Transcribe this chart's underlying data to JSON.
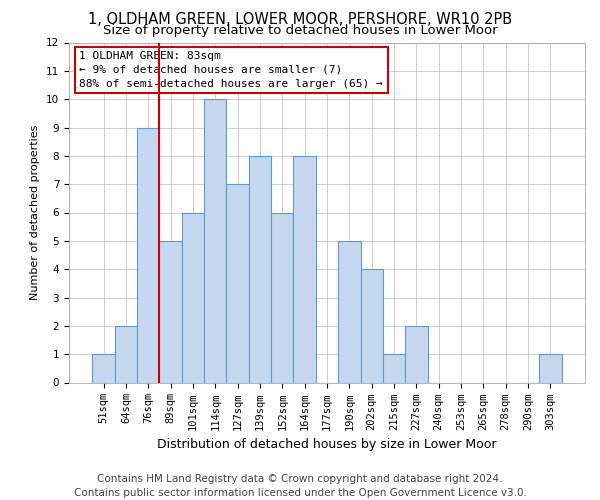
{
  "title1": "1, OLDHAM GREEN, LOWER MOOR, PERSHORE, WR10 2PB",
  "title2": "Size of property relative to detached houses in Lower Moor",
  "xlabel": "Distribution of detached houses by size in Lower Moor",
  "ylabel": "Number of detached properties",
  "categories": [
    "51sqm",
    "64sqm",
    "76sqm",
    "89sqm",
    "101sqm",
    "114sqm",
    "127sqm",
    "139sqm",
    "152sqm",
    "164sqm",
    "177sqm",
    "190sqm",
    "202sqm",
    "215sqm",
    "227sqm",
    "240sqm",
    "253sqm",
    "265sqm",
    "278sqm",
    "290sqm",
    "303sqm"
  ],
  "values": [
    1,
    2,
    9,
    5,
    6,
    10,
    7,
    8,
    6,
    8,
    0,
    5,
    4,
    1,
    2,
    0,
    0,
    0,
    0,
    0,
    1
  ],
  "bar_color": "#c5d8f0",
  "bar_edge_color": "#5b9bd5",
  "vline_color": "#cc0000",
  "vline_x_index": 2,
  "annotation_text": "1 OLDHAM GREEN: 83sqm\n← 9% of detached houses are smaller (7)\n88% of semi-detached houses are larger (65) →",
  "annotation_box_color": "#ffffff",
  "annotation_box_edge": "#cc0000",
  "ylim": [
    0,
    12
  ],
  "yticks": [
    0,
    1,
    2,
    3,
    4,
    5,
    6,
    7,
    8,
    9,
    10,
    11,
    12
  ],
  "footer1": "Contains HM Land Registry data © Crown copyright and database right 2024.",
  "footer2": "Contains public sector information licensed under the Open Government Licence v3.0.",
  "bg_color": "#ffffff",
  "grid_color": "#c0c8d8",
  "title1_fontsize": 10.5,
  "title2_fontsize": 9.5,
  "xlabel_fontsize": 9,
  "ylabel_fontsize": 8,
  "tick_fontsize": 7.5,
  "footer_fontsize": 7.5,
  "annotation_fontsize": 8
}
